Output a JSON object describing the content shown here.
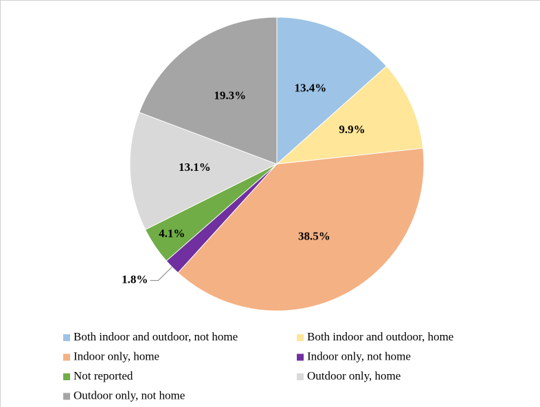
{
  "chart_data": {
    "type": "pie",
    "categories": [
      "Both indoor and outdoor, not home",
      "Both indoor and outdoor, home",
      "Indoor only, home",
      "Indoor only, not home",
      "Not reported",
      "Outdoor only, home",
      "Outdoor only, not home"
    ],
    "values": [
      13.4,
      9.9,
      38.5,
      1.8,
      4.1,
      13.1,
      19.3
    ],
    "value_labels": [
      "13.4%",
      "9.9%",
      "38.5%",
      "1.8%",
      "4.1%",
      "13.1%",
      "19.3%"
    ],
    "colors": [
      "#9dc3e6",
      "#ffe699",
      "#f4b183",
      "#7030a0",
      "#70ad47",
      "#d9d9d9",
      "#a5a5a5"
    ],
    "legend": "bottom"
  }
}
